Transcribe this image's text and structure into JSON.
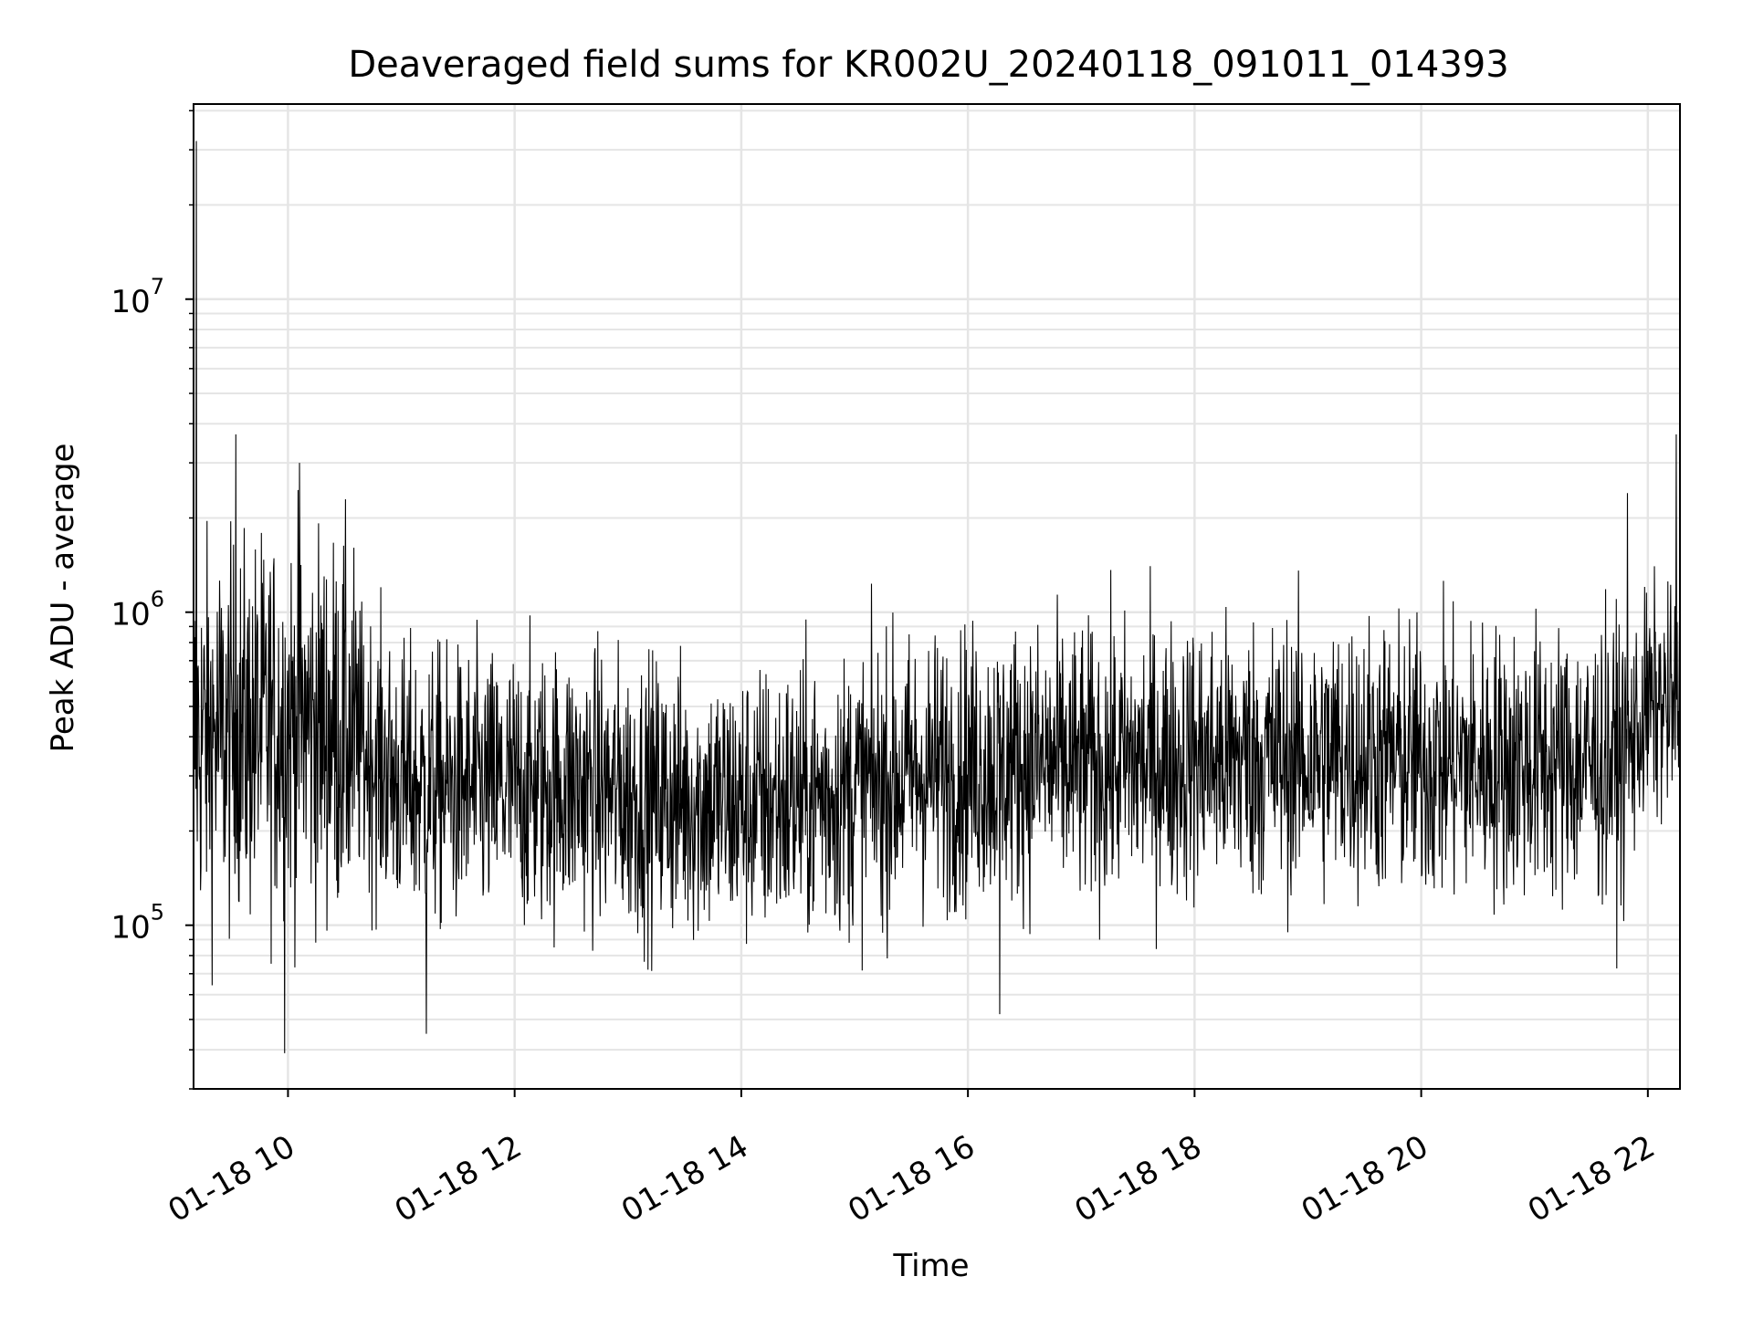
{
  "chart_data": {
    "type": "line",
    "title": "Deaveraged field sums for KR002U_20240118_091011_014393",
    "xlabel": "Time",
    "ylabel": "Peak ADU - average",
    "x_range": [
      "2024-01-18 09:10",
      "2024-01-18 22:17"
    ],
    "y_scale": "log",
    "ylim": [
      30000,
      42000000
    ],
    "grid": true,
    "line_color": "#000000",
    "grid_color": "#e5e5e5",
    "x_ticks": [
      "01-18 10",
      "01-18 12",
      "01-18 14",
      "01-18 16",
      "01-18 18",
      "01-18 20",
      "01-18 22"
    ],
    "x_tick_hours": [
      10,
      12,
      14,
      16,
      18,
      20,
      22
    ],
    "y_ticks": [
      {
        "value": 100000,
        "base": "10",
        "exp": "5"
      },
      {
        "value": 1000000,
        "base": "10",
        "exp": "6"
      },
      {
        "value": 10000000,
        "base": "10",
        "exp": "7"
      }
    ],
    "series": [
      {
        "description": "Noisy trace sampled along time; approximate envelope of median level (ADU) per hour",
        "hours": [
          9.17,
          9.5,
          10.0,
          10.5,
          11.0,
          11.5,
          12.0,
          12.5,
          13.0,
          13.5,
          14.0,
          14.5,
          15.0,
          15.5,
          16.0,
          16.5,
          17.0,
          17.5,
          18.0,
          18.5,
          19.0,
          19.5,
          20.0,
          20.5,
          21.0,
          21.5,
          21.8,
          22.0,
          22.28
        ],
        "median": [
          400000,
          400000,
          450000,
          420000,
          280000,
          270000,
          270000,
          280000,
          260000,
          250000,
          240000,
          250000,
          270000,
          300000,
          320000,
          330000,
          320000,
          330000,
          340000,
          340000,
          340000,
          350000,
          330000,
          330000,
          330000,
          330000,
          340000,
          500000,
          500000
        ],
        "peaks": [
          {
            "hour": 9.19,
            "value": 32000000
          },
          {
            "hour": 9.54,
            "value": 3700000
          },
          {
            "hour": 10.1,
            "value": 3000000
          },
          {
            "hour": 21.82,
            "value": 2400000
          },
          {
            "hour": 22.25,
            "value": 3700000
          }
        ],
        "troughs": [
          {
            "hour": 9.97,
            "value": 39000
          },
          {
            "hour": 11.22,
            "value": 45000
          },
          {
            "hour": 16.28,
            "value": 52000
          }
        ]
      }
    ]
  }
}
